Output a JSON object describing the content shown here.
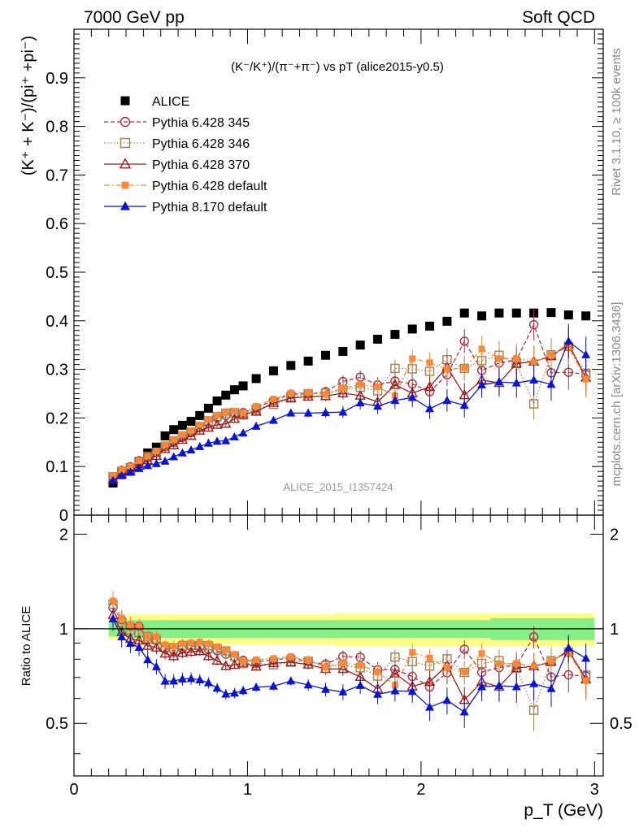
{
  "header": {
    "left": "7000 GeV pp",
    "right": "Soft QCD"
  },
  "side_labels": {
    "rivet": "Rivet 3.1.10, ≥ 100k events",
    "mcplots": "mcplots.cern.ch [arXiv:1306.3436]"
  },
  "chart_data": {
    "type": "scatter",
    "title": "(K⁻/K⁺)/(π⁻+π⁻) vs pT (alice2015-y0.5)",
    "watermark": "ALICE_2015_I1357424",
    "xlabel": "p_T (GeV)",
    "ylabel": "(K⁺ + K⁻)/(pi⁺ +pi⁻)",
    "ratio_ylabel": "Ratio to ALICE",
    "xlim": [
      0,
      3.05
    ],
    "ylim": [
      0,
      1.0
    ],
    "ratio_ylim": [
      0.34,
      2.3
    ],
    "x_ticks": [
      "0",
      "1",
      "2",
      "3"
    ],
    "y_ticks": [
      "0",
      "0.1",
      "0.2",
      "0.3",
      "0.4",
      "0.5",
      "0.6",
      "0.7",
      "0.8",
      "0.9"
    ],
    "ratio_ticks": [
      "0.5",
      "1",
      "2"
    ],
    "grid": false,
    "legend_position": "top-left",
    "colors": {
      "band_inner": "#88ee88",
      "band_outer": "#ffff88"
    },
    "x": [
      0.225,
      0.275,
      0.325,
      0.375,
      0.425,
      0.475,
      0.525,
      0.575,
      0.625,
      0.675,
      0.725,
      0.775,
      0.825,
      0.875,
      0.925,
      0.975,
      1.05,
      1.15,
      1.25,
      1.35,
      1.45,
      1.55,
      1.65,
      1.75,
      1.85,
      1.95,
      2.05,
      2.15,
      2.25,
      2.35,
      2.45,
      2.55,
      2.65,
      2.75,
      2.85,
      2.95
    ],
    "series": [
      {
        "name": "ALICE",
        "marker": "square-filled",
        "color": "#000000",
        "values": [
          0.066,
          0.086,
          0.098,
          0.11,
          0.128,
          0.14,
          0.163,
          0.176,
          0.185,
          0.193,
          0.205,
          0.22,
          0.235,
          0.247,
          0.258,
          0.266,
          0.281,
          0.297,
          0.308,
          0.317,
          0.329,
          0.337,
          0.35,
          0.362,
          0.372,
          0.383,
          0.389,
          0.399,
          0.416,
          0.41,
          0.416,
          0.416,
          0.416,
          0.417,
          0.412,
          0.41
        ]
      },
      {
        "name": "Pythia 6.428 345",
        "marker": "circle-open",
        "line": "dashed",
        "color": "#b03040",
        "values": [
          0.077,
          0.092,
          0.1,
          0.112,
          0.118,
          0.129,
          0.141,
          0.15,
          0.16,
          0.17,
          0.18,
          0.189,
          0.2,
          0.205,
          0.21,
          0.211,
          0.221,
          0.236,
          0.249,
          0.249,
          0.254,
          0.275,
          0.284,
          0.268,
          0.276,
          0.27,
          0.254,
          0.289,
          0.358,
          0.298,
          0.313,
          0.319,
          0.392,
          0.293,
          0.294,
          0.29
        ]
      },
      {
        "name": "Pythia 6.428 346",
        "marker": "square-open",
        "line": "dotted",
        "color": "#a08050",
        "values": [
          0.079,
          0.09,
          0.097,
          0.107,
          0.121,
          0.129,
          0.142,
          0.153,
          0.163,
          0.171,
          0.181,
          0.194,
          0.203,
          0.21,
          0.211,
          0.206,
          0.218,
          0.228,
          0.241,
          0.25,
          0.251,
          0.258,
          0.263,
          0.256,
          0.302,
          0.301,
          0.296,
          0.32,
          0.302,
          0.318,
          0.329,
          0.312,
          0.229,
          0.33,
          0.347,
          0.292
        ]
      },
      {
        "name": "Pythia 6.428 370",
        "marker": "triangle-open",
        "line": "solid",
        "color": "#9b1a1a",
        "values": [
          0.073,
          0.084,
          0.091,
          0.101,
          0.113,
          0.122,
          0.136,
          0.144,
          0.155,
          0.163,
          0.174,
          0.18,
          0.186,
          0.188,
          0.198,
          0.207,
          0.213,
          0.231,
          0.241,
          0.244,
          0.245,
          0.251,
          0.246,
          0.233,
          0.268,
          0.251,
          0.264,
          0.305,
          0.247,
          0.278,
          0.272,
          0.312,
          0.316,
          0.327,
          0.352,
          0.283
        ]
      },
      {
        "name": "Pythia 6.428 default",
        "marker": "square-filled-small",
        "line": "dashdot",
        "color": "#f58a3a",
        "values": [
          0.081,
          0.093,
          0.101,
          0.112,
          0.121,
          0.132,
          0.145,
          0.155,
          0.166,
          0.174,
          0.186,
          0.197,
          0.206,
          0.211,
          0.214,
          0.21,
          0.224,
          0.239,
          0.251,
          0.252,
          0.248,
          0.262,
          0.268,
          0.264,
          0.246,
          0.322,
          0.314,
          0.3,
          0.303,
          0.342,
          0.322,
          0.323,
          0.315,
          0.33,
          0.346,
          0.28
        ]
      },
      {
        "name": "Pythia 8.170 default",
        "marker": "triangle-filled",
        "line": "solid",
        "color": "#0a14d0",
        "values": [
          0.071,
          0.081,
          0.088,
          0.096,
          0.102,
          0.106,
          0.111,
          0.12,
          0.128,
          0.134,
          0.141,
          0.148,
          0.152,
          0.153,
          0.161,
          0.169,
          0.183,
          0.195,
          0.21,
          0.21,
          0.211,
          0.212,
          0.231,
          0.224,
          0.236,
          0.242,
          0.219,
          0.236,
          0.226,
          0.268,
          0.274,
          0.272,
          0.278,
          0.269,
          0.358,
          0.33
        ]
      }
    ]
  }
}
